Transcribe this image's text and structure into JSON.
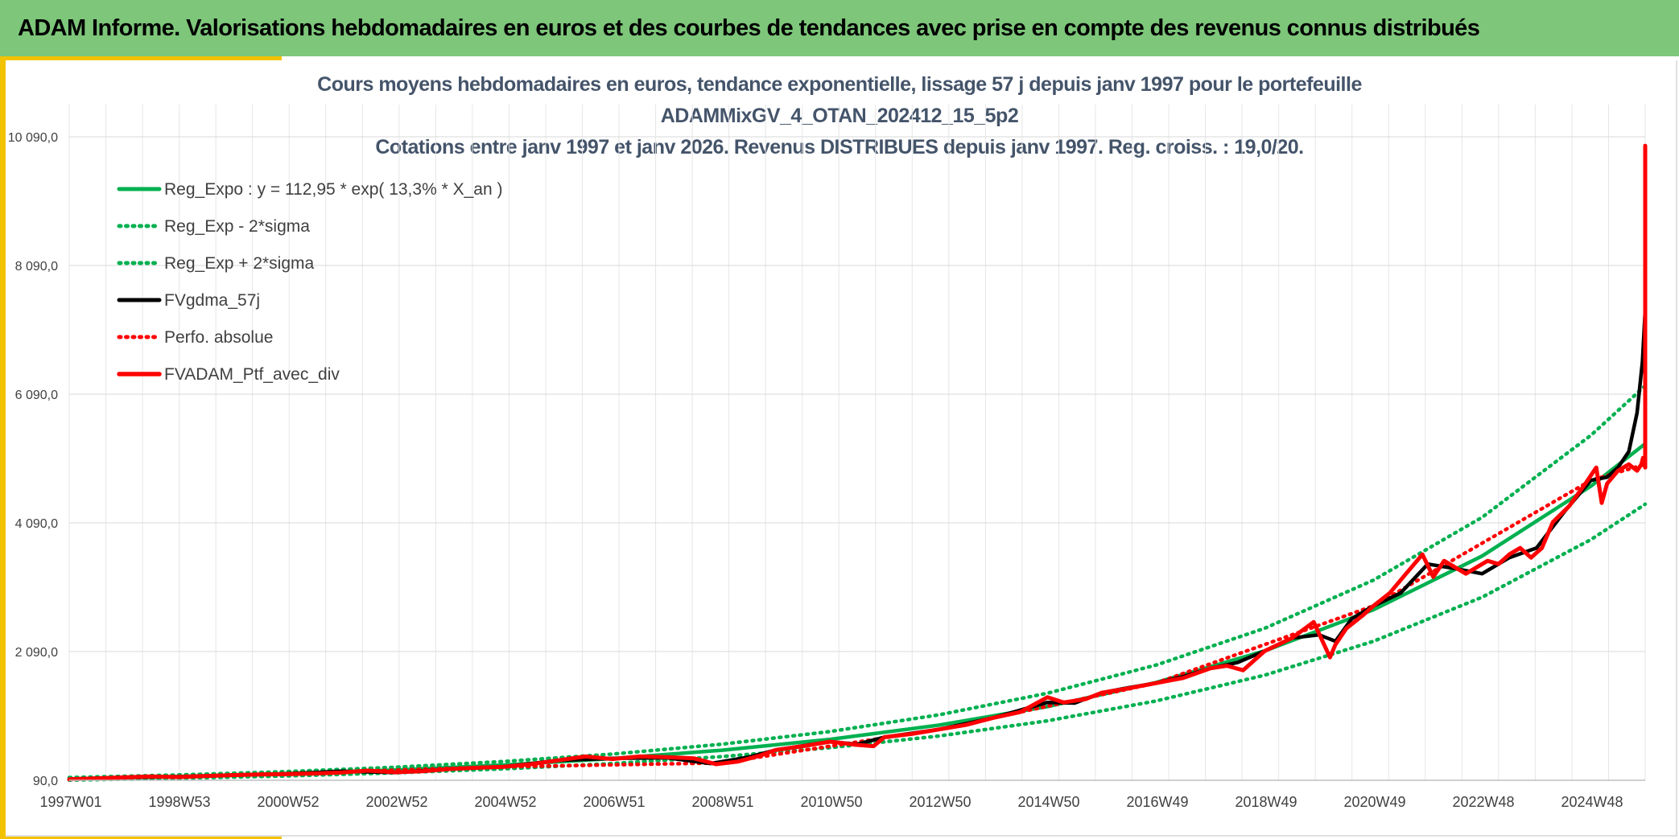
{
  "header": {
    "title": "ADAM Informe. Valorisations hebdomadaires en euros et des courbes de tendances avec prise en compte des revenus connus distribués"
  },
  "chart_data": {
    "type": "line",
    "title_lines": [
      "Cours moyens hebdomadaires en euros, tendance exponentielle, lissage 57 j depuis janv 1997 pour le portefeuille",
      "ADAMMixGV_4_OTAN_202412_15_5p2",
      "Cotations entre janv 1997 et janv 2026. Revenus DISTRIBUES depuis janv 1997. Reg. croiss. : 19,0/20."
    ],
    "xlabel": "",
    "ylabel": "",
    "x_ticks": [
      "1997W01",
      "1998W53",
      "2000W52",
      "2002W52",
      "2004W52",
      "2006W51",
      "2008W51",
      "2010W50",
      "2012W50",
      "2014W50",
      "2016W49",
      "2018W49",
      "2020W49",
      "2022W48",
      "2024W48"
    ],
    "x_range": [
      1997.0,
      2026.0
    ],
    "ylim": [
      90,
      10590
    ],
    "y_ticks": [
      90,
      2090,
      4090,
      6090,
      8090,
      10090
    ],
    "y_tick_labels": [
      "90,0",
      "2 090,0",
      "4 090,0",
      "6 090,0",
      "8 090,0",
      "10 090,0"
    ],
    "grid": true,
    "legend_position": "top-left",
    "series": [
      {
        "name": "Reg_Expo : y = 112,95 * exp( 13,3% *  X_an )",
        "color": "#00b050",
        "style": "solid",
        "x": [
          1997.0,
          1999.0,
          2001.0,
          2003.0,
          2005.0,
          2007.0,
          2009.0,
          2011.0,
          2013.0,
          2015.0,
          2017.0,
          2019.0,
          2021.0,
          2023.0,
          2025.0,
          2026.0
        ],
        "y": [
          113,
          147,
          192,
          250,
          327,
          427,
          556,
          726,
          946,
          1235,
          1610,
          2100,
          2740,
          3575,
          4660,
          5320
        ]
      },
      {
        "name": "Reg_Exp - 2*sigma",
        "color": "#00b050",
        "style": "dotted",
        "x": [
          1997.0,
          1999.0,
          2001.0,
          2003.0,
          2005.0,
          2007.0,
          2009.0,
          2011.0,
          2013.0,
          2015.0,
          2017.0,
          2019.0,
          2021.0,
          2023.0,
          2025.0,
          2026.0
        ],
        "y": [
          93,
          121,
          158,
          206,
          268,
          350,
          457,
          596,
          777,
          1014,
          1322,
          1724,
          2250,
          2935,
          3830,
          4380
        ]
      },
      {
        "name": "Reg_Exp + 2*sigma",
        "color": "#00b050",
        "style": "dotted",
        "x": [
          1997.0,
          1999.0,
          2001.0,
          2003.0,
          2005.0,
          2007.0,
          2009.0,
          2011.0,
          2013.0,
          2015.0,
          2017.0,
          2019.0,
          2021.0,
          2023.0,
          2025.0,
          2026.0
        ],
        "y": [
          132,
          172,
          225,
          292,
          382,
          498,
          650,
          848,
          1106,
          1443,
          1880,
          2452,
          3200,
          4176,
          5450,
          6220
        ]
      },
      {
        "name": "FVgdma_57j",
        "color": "#000000",
        "style": "solid",
        "x": [
          1997.0,
          1998.0,
          1999.0,
          2000.0,
          2001.0,
          2002.0,
          2003.0,
          2004.0,
          2005.0,
          2006.0,
          2007.0,
          2008.0,
          2008.8,
          2009.5,
          2010.0,
          2011.0,
          2011.5,
          2012.0,
          2013.0,
          2014.0,
          2015.0,
          2015.5,
          2016.0,
          2016.5,
          2017.0,
          2017.5,
          2018.0,
          2018.5,
          2019.0,
          2019.5,
          2020.0,
          2020.3,
          2020.6,
          2021.0,
          2021.5,
          2022.0,
          2022.5,
          2023.0,
          2023.5,
          2024.0,
          2024.5,
          2025.0,
          2025.3,
          2025.5,
          2025.7,
          2025.85,
          2025.95,
          2026.0
        ],
        "y": [
          105,
          135,
          145,
          170,
          190,
          230,
          210,
          265,
          300,
          400,
          430,
          440,
          350,
          450,
          560,
          690,
          650,
          760,
          880,
          1060,
          1300,
          1290,
          1450,
          1530,
          1600,
          1700,
          1830,
          1920,
          2100,
          2300,
          2350,
          2250,
          2600,
          2800,
          3000,
          3450,
          3380,
          3300,
          3550,
          3700,
          4250,
          4750,
          4800,
          4950,
          5200,
          5800,
          6600,
          7400
        ]
      },
      {
        "name": "Perfo. absolue",
        "color": "#ff0000",
        "style": "dotted",
        "x": [
          1997.0,
          2001.0,
          2005.0,
          2009.0,
          2013.0,
          2017.0,
          2021.0,
          2025.0,
          2026.0
        ],
        "y": [
          105,
          195,
          300,
          360,
          880,
          1600,
          2800,
          4750,
          5000
        ]
      },
      {
        "name": "FVADAM_Ptf_avec_div",
        "color": "#ff0000",
        "style": "solid",
        "x": [
          1997.0,
          1997.5,
          1998.0,
          1998.5,
          1999.0,
          1999.5,
          2000.0,
          2000.5,
          2001.0,
          2001.5,
          2002.0,
          2002.5,
          2003.0,
          2003.5,
          2004.0,
          2004.5,
          2005.0,
          2005.5,
          2006.0,
          2006.5,
          2007.0,
          2007.5,
          2008.0,
          2008.5,
          2008.9,
          2009.3,
          2009.7,
          2010.0,
          2010.5,
          2011.0,
          2011.5,
          2011.8,
          2012.0,
          2012.5,
          2013.0,
          2013.5,
          2014.0,
          2014.5,
          2015.0,
          2015.3,
          2015.7,
          2016.0,
          2016.5,
          2017.0,
          2017.5,
          2018.0,
          2018.3,
          2018.6,
          2019.0,
          2019.5,
          2019.9,
          2020.2,
          2020.3,
          2020.5,
          2020.8,
          2021.0,
          2021.3,
          2021.6,
          2021.9,
          2022.1,
          2022.3,
          2022.5,
          2022.7,
          2022.9,
          2023.1,
          2023.3,
          2023.5,
          2023.7,
          2023.9,
          2024.1,
          2024.3,
          2024.6,
          2024.9,
          2025.1,
          2025.2,
          2025.3,
          2025.5,
          2025.7,
          2025.85,
          2025.93,
          2025.96,
          2026.0,
          2026.0
        ],
        "y": [
          105,
          120,
          135,
          150,
          140,
          155,
          170,
          180,
          185,
          195,
          210,
          240,
          215,
          230,
          265,
          285,
          300,
          340,
          400,
          460,
          420,
          460,
          450,
          430,
          340,
          380,
          470,
          560,
          620,
          690,
          640,
          620,
          760,
          810,
          880,
          950,
          1060,
          1150,
          1380,
          1300,
          1350,
          1450,
          1520,
          1600,
          1680,
          1830,
          1870,
          1800,
          2100,
          2300,
          2550,
          2000,
          2200,
          2450,
          2650,
          2800,
          3000,
          3300,
          3600,
          3250,
          3500,
          3400,
          3300,
          3400,
          3500,
          3450,
          3600,
          3700,
          3550,
          3700,
          4100,
          4350,
          4700,
          4950,
          4400,
          4700,
          4900,
          5000,
          4900,
          5000,
          5100,
          4950,
          9950
        ]
      }
    ]
  }
}
